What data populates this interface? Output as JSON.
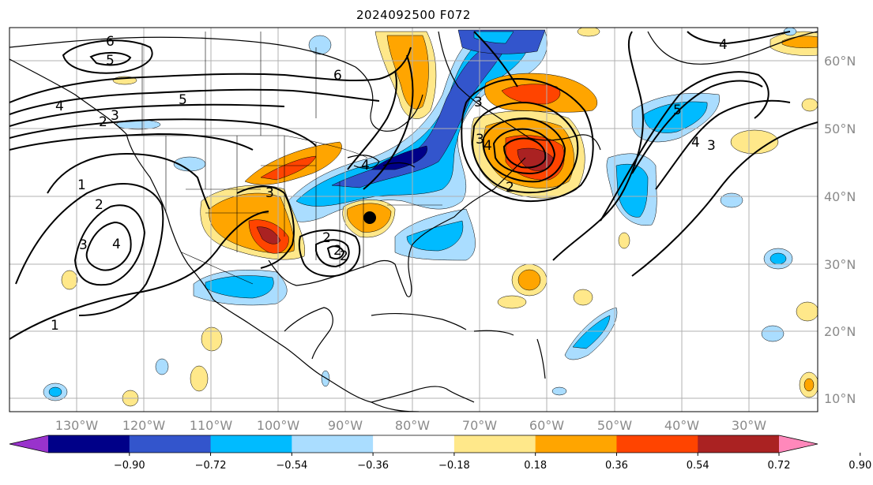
{
  "title": "2024092500 F072",
  "lon_labels": [
    "130°W",
    "120°W",
    "110°W",
    "100°W",
    "90°W",
    "80°W",
    "70°W",
    "60°W",
    "50°W",
    "40°W",
    "30°W"
  ],
  "lat_labels": [
    "60°N",
    "50°N",
    "40°N",
    "30°N",
    "20°N",
    "10°N"
  ],
  "colorbar": {
    "colors": [
      "#9933cc",
      "#000088",
      "#3355cc",
      "#00bbff",
      "#aaddff",
      "#ffffff",
      "#ffe88a",
      "#ffa500",
      "#ff4400",
      "#aa2222",
      "#ff88bb"
    ],
    "tick_labels": [
      "−0.90",
      "−0.72",
      "−0.54",
      "−0.36",
      "−0.18",
      "0.18",
      "0.36",
      "0.54",
      "0.72",
      "0.90"
    ]
  },
  "contour_labels": [
    "6",
    "5",
    "6",
    "5",
    "4",
    "3",
    "2",
    "1",
    "2",
    "3",
    "4",
    "3",
    "2",
    "3",
    "4",
    "3",
    "5",
    "4",
    "3",
    "4",
    "2",
    "2",
    "2",
    "1",
    "4"
  ]
}
